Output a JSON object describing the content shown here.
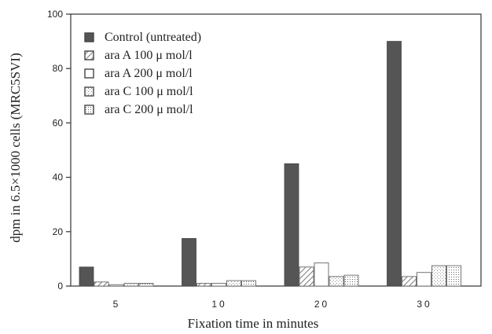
{
  "chart_data": {
    "type": "bar",
    "title": "",
    "xlabel": "Fixation time in minutes",
    "ylabel": "dpm in 6.5×1000 cells (MRC5SVI)",
    "ylim": [
      0,
      100
    ],
    "yticks": [
      "0",
      "20",
      "40",
      "60",
      "80",
      "100"
    ],
    "categories": [
      "5",
      "10",
      "20",
      "30"
    ],
    "grid": false,
    "legend_position": "top-left",
    "series": [
      {
        "name": "Control (untreated)",
        "pattern": "solid",
        "color": "#555555",
        "values": [
          7,
          17.5,
          45,
          90
        ]
      },
      {
        "name": "ara A 100 μ mol/l",
        "pattern": "hatch",
        "color": "#888888",
        "values": [
          1.5,
          1,
          7,
          3.5
        ]
      },
      {
        "name": "ara A 200 μ mol/l",
        "pattern": "open",
        "color": "#ffffff",
        "values": [
          0.5,
          1,
          8.5,
          5
        ]
      },
      {
        "name": "ara C 100 μ mol/l",
        "pattern": "speckle",
        "color": "#dddddd",
        "values": [
          1,
          2,
          3.5,
          7.5
        ]
      },
      {
        "name": "ara C 200 μ mol/l",
        "pattern": "dotted",
        "color": "#eeeeee",
        "values": [
          1,
          2,
          4,
          7.5
        ]
      }
    ]
  }
}
